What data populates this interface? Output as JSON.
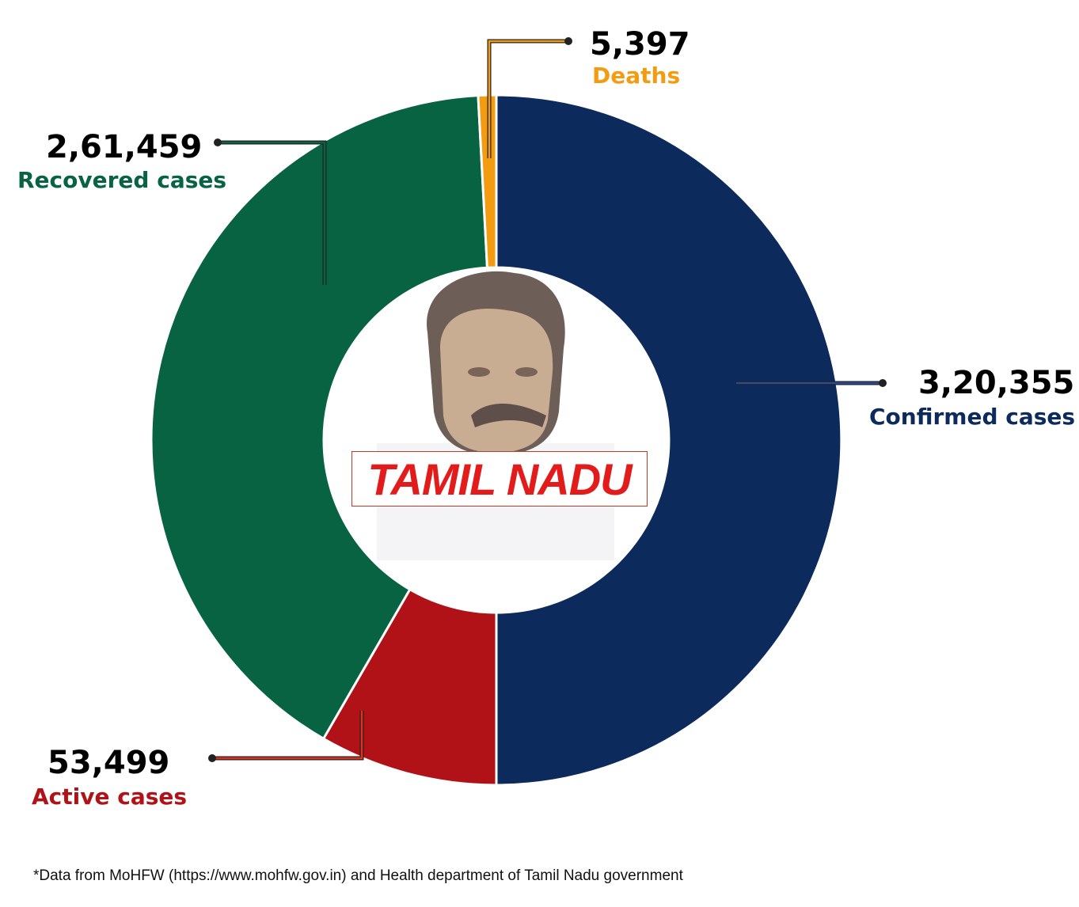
{
  "chart_data": {
    "type": "pie",
    "variant": "donut",
    "title": "TAMIL NADU",
    "slices": [
      {
        "name": "Confirmed cases",
        "value": 320355,
        "label": "3,20,355",
        "color": "#0c2a5c"
      },
      {
        "name": "Active cases",
        "value": 53499,
        "label": "53,499",
        "color": "#b11218"
      },
      {
        "name": "Recovered cases",
        "value": 261459,
        "label": "2,61,459",
        "color": "#086343"
      },
      {
        "name": "Deaths",
        "value": 5397,
        "label": "5,397",
        "color": "#f39c12"
      }
    ],
    "footnote": "*Data from MoHFW (https://www.mohfw.gov.in) and Health department of Tamil Nadu government"
  }
}
